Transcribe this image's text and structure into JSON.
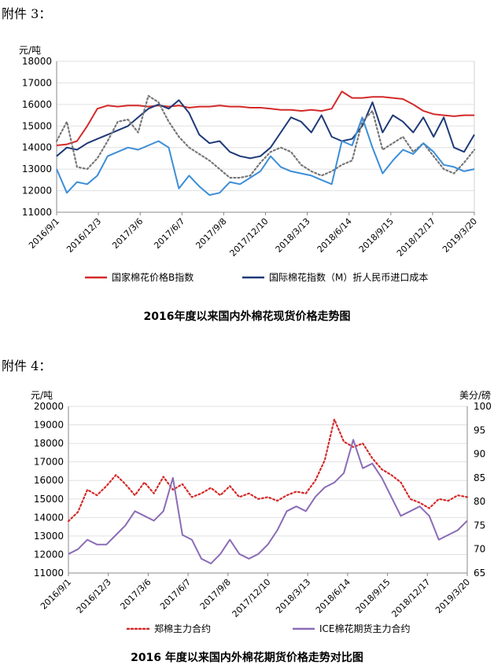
{
  "attachments": [
    "附件 3：",
    "附件 4："
  ],
  "chart_data": [
    {
      "type": "line",
      "title": "2016年度以来国内外棉花现货价格走势图",
      "ylabel": "元/吨",
      "ylim": [
        11000,
        18000
      ],
      "yticks": [
        11000,
        12000,
        13000,
        14000,
        15000,
        16000,
        17000,
        18000
      ],
      "x_tick_labels": [
        "2016/9/1",
        "2016/12/3",
        "2017/3/6",
        "2017/6/7",
        "2017/9/8",
        "2017/12/10",
        "2018/3/13",
        "2018/6/14",
        "2018/9/15",
        "2018/12/17",
        "2019/3/20"
      ],
      "legend_position": "bottom",
      "series": [
        {
          "name": "国家棉花价格B指数",
          "color": "#d42a2a",
          "style": "solid",
          "values": [
            14100,
            14150,
            14300,
            15000,
            15800,
            15950,
            15900,
            15950,
            15950,
            15900,
            15950,
            15900,
            15950,
            15850,
            15900,
            15900,
            15950,
            15900,
            15900,
            15850,
            15850,
            15800,
            15750,
            15750,
            15700,
            15750,
            15700,
            15800,
            16600,
            16300,
            16300,
            16350,
            16350,
            16300,
            16250,
            16000,
            15700,
            15550,
            15500,
            15450,
            15500,
            15500
          ]
        },
        {
          "name": "国际棉花指数（M）折人民币进口成本",
          "color": "#1f3a78",
          "style": "solid",
          "values": [
            13600,
            14000,
            13900,
            14200,
            14400,
            14600,
            14800,
            15000,
            15400,
            15800,
            16000,
            15800,
            16200,
            15600,
            14600,
            14200,
            14300,
            13800,
            13600,
            13500,
            13600,
            14000,
            14700,
            15400,
            15200,
            14700,
            15500,
            14500,
            14300,
            14400,
            15000,
            16100,
            14700,
            15500,
            15200,
            14700,
            15400,
            14500,
            15400,
            14000,
            13800,
            14600
          ]
        },
        {
          "name": "",
          "color": "#777777",
          "style": "dotted",
          "values": [
            14300,
            15200,
            13100,
            13000,
            13500,
            14300,
            15200,
            15300,
            14700,
            16400,
            16100,
            15200,
            14500,
            14000,
            13700,
            13400,
            13000,
            12600,
            12600,
            12700,
            13300,
            13800,
            14000,
            13800,
            13200,
            12900,
            12700,
            12900,
            13200,
            13400,
            15200,
            15700,
            13900,
            14200,
            14500,
            13800,
            14200,
            13600,
            13000,
            12800,
            13300,
            13900
          ]
        },
        {
          "name": "",
          "color": "#3c8ed8",
          "style": "solid",
          "values": [
            13000,
            11900,
            12400,
            12300,
            12700,
            13600,
            13800,
            14000,
            13900,
            14100,
            14300,
            14000,
            12100,
            12700,
            12200,
            11800,
            11900,
            12400,
            12300,
            12600,
            12900,
            13600,
            13100,
            12900,
            12800,
            12700,
            12500,
            12300,
            14300,
            14100,
            15400,
            14000,
            12800,
            13400,
            13900,
            13700,
            14200,
            13800,
            13200,
            13100,
            12900,
            13000
          ]
        }
      ]
    },
    {
      "type": "line",
      "title": "2016 年度以来国内外棉花期货价格走势对比图",
      "ylabel": "元/吨",
      "y2label": "美分/磅",
      "ylim": [
        11000,
        20000
      ],
      "y2lim": [
        65,
        100
      ],
      "yticks": [
        11000,
        12000,
        13000,
        14000,
        15000,
        16000,
        17000,
        18000,
        19000,
        20000
      ],
      "y2ticks": [
        65,
        70,
        75,
        80,
        85,
        90,
        95,
        100
      ],
      "x_tick_labels": [
        "2016/9/1",
        "2016/12/3",
        "2017/3/6",
        "2017/6/7",
        "2017/9/8",
        "2017/12/10",
        "2018/3/13",
        "2018/6/14",
        "2018/9/15",
        "2018/12/17",
        "2019/3/20"
      ],
      "legend_position": "bottom",
      "series": [
        {
          "name": "郑棉主力合约",
          "axis": "left",
          "color": "#d42a2a",
          "style": "dotted",
          "values": [
            13800,
            14300,
            15500,
            15200,
            15700,
            16300,
            15800,
            15200,
            15900,
            15300,
            16200,
            15500,
            15800,
            15100,
            15300,
            15600,
            15200,
            15700,
            15100,
            15300,
            15000,
            15100,
            14900,
            15200,
            15400,
            15300,
            16000,
            17100,
            19300,
            18100,
            17800,
            18000,
            17200,
            16600,
            16300,
            15900,
            15000,
            14800,
            14500,
            15000,
            14900,
            15200,
            15100
          ]
        },
        {
          "name": "ICE棉花期货主力合约",
          "axis": "right",
          "color": "#8b6cb6",
          "style": "solid",
          "values": [
            69,
            70,
            72,
            71,
            71,
            73,
            75,
            78,
            77,
            76,
            78,
            85,
            73,
            72,
            68,
            67,
            69,
            72,
            69,
            68,
            69,
            71,
            74,
            78,
            79,
            78,
            81,
            83,
            84,
            86,
            93,
            87,
            88,
            85,
            81,
            77,
            78,
            79,
            77,
            72,
            73,
            74,
            76
          ]
        }
      ]
    }
  ]
}
